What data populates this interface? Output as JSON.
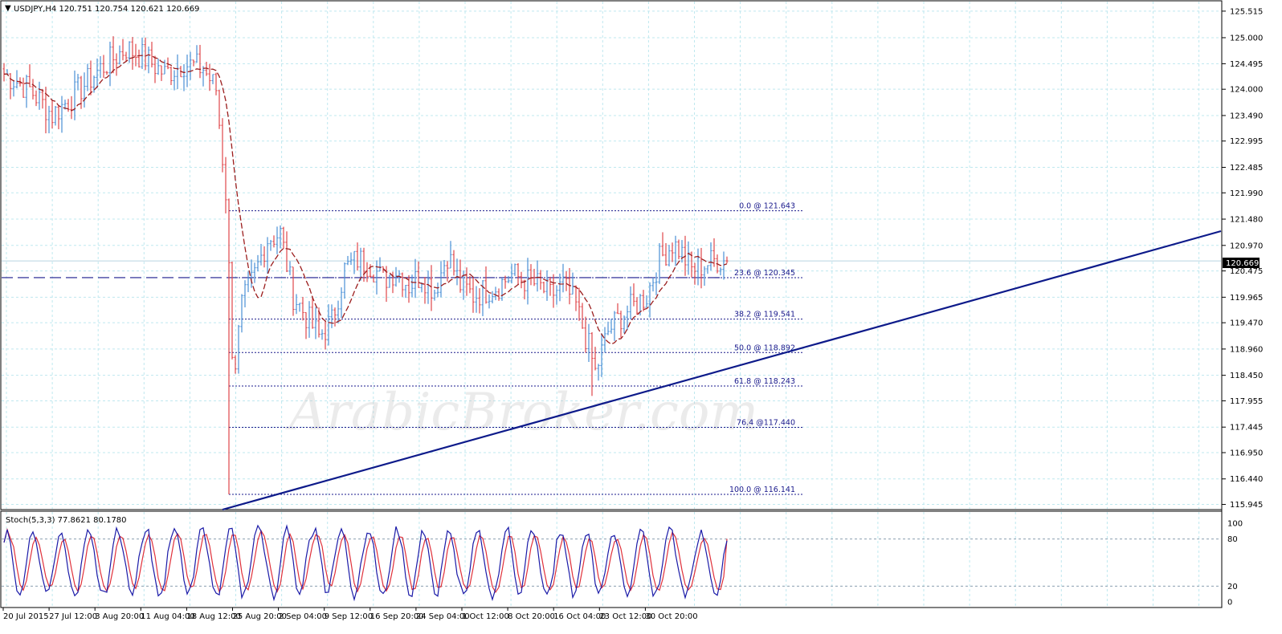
{
  "header": {
    "symbol_line": "USDJPY,H4  120.751 120.754 120.621 120.669",
    "dropdown_marker": "▼"
  },
  "watermark": "ArabicBroker.com",
  "colors": {
    "background": "#ffffff",
    "grid": "#bfe8ef",
    "bull": "#4a90d6",
    "bear": "#e0454a",
    "ma": "#9b1d1d",
    "fib": "#1a1a8c",
    "trendline": "#0d1a8a",
    "stoch_main": "#1a1aa8",
    "stoch_signal": "#e0303a",
    "stoch_level": "#8a9fb0",
    "frame": "#000000"
  },
  "chart_data": [
    {
      "type": "candlestick",
      "title": "USDJPY,H4",
      "ohlc_current": {
        "open": 120.751,
        "high": 120.754,
        "low": 120.621,
        "close": 120.669
      },
      "current_price_label": "120.669",
      "y_ticks": [
        "125.515",
        "125.000",
        "124.495",
        "124.000",
        "123.490",
        "122.995",
        "122.485",
        "121.990",
        "121.480",
        "120.970",
        "120.475",
        "119.965",
        "119.470",
        "118.960",
        "118.450",
        "117.955",
        "117.445",
        "116.950",
        "116.440",
        "115.945"
      ],
      "ylim": [
        115.86,
        125.7
      ],
      "x_ticks": [
        "20 Jul 2015",
        "27 Jul 12:00",
        "3 Aug 20:00",
        "11 Aug 04:00",
        "18 Aug 12:00",
        "25 Aug 20:00",
        "2 Sep 04:00",
        "9 Sep 12:00",
        "16 Sep 20:00",
        "24 Sep 04:00",
        "1 Oct 12:00",
        "8 Oct 20:00",
        "16 Oct 04:00",
        "23 Oct 12:00",
        "30 Oct 20:00"
      ],
      "close_path_keypoints": [
        [
          0,
          124.3
        ],
        [
          8,
          124.0
        ],
        [
          15,
          123.5
        ],
        [
          22,
          123.9
        ],
        [
          30,
          124.4
        ],
        [
          38,
          124.8
        ],
        [
          44,
          124.6
        ],
        [
          50,
          124.3
        ],
        [
          56,
          124.5
        ],
        [
          62,
          124.4
        ],
        [
          66,
          124.0
        ],
        [
          69,
          122.0
        ],
        [
          71,
          119.0
        ],
        [
          72,
          118.7
        ],
        [
          74,
          119.8
        ],
        [
          78,
          120.4
        ],
        [
          82,
          121.1
        ],
        [
          86,
          121.2
        ],
        [
          90,
          120.0
        ],
        [
          94,
          119.6
        ],
        [
          98,
          119.2
        ],
        [
          102,
          119.5
        ],
        [
          106,
          120.5
        ],
        [
          110,
          120.7
        ],
        [
          114,
          120.6
        ],
        [
          118,
          120.3
        ],
        [
          122,
          120.5
        ],
        [
          126,
          120.2
        ],
        [
          130,
          120.4
        ],
        [
          134,
          120.1
        ],
        [
          138,
          120.8
        ],
        [
          142,
          120.2
        ],
        [
          146,
          120.0
        ],
        [
          150,
          120.1
        ],
        [
          154,
          120.2
        ],
        [
          158,
          120.4
        ],
        [
          162,
          120.3
        ],
        [
          166,
          120.2
        ],
        [
          170,
          120.0
        ],
        [
          174,
          120.2
        ],
        [
          178,
          119.8
        ],
        [
          182,
          119.0
        ],
        [
          184,
          118.5
        ],
        [
          188,
          119.3
        ],
        [
          192,
          119.6
        ],
        [
          196,
          119.8
        ],
        [
          200,
          120.0
        ],
        [
          204,
          120.7
        ],
        [
          208,
          121.0
        ],
        [
          210,
          120.9
        ],
        [
          214,
          120.5
        ],
        [
          218,
          120.6
        ],
        [
          222,
          120.7
        ],
        [
          225,
          120.669
        ]
      ],
      "moving_average": {
        "label": "Moving Average",
        "color": "#9b1d1d"
      },
      "fibonacci": [
        {
          "label": "0.0 @ 121.643",
          "price": 121.643
        },
        {
          "label": "23.6 @ 120.345",
          "price": 120.345
        },
        {
          "label": "38.2 @ 119.541",
          "price": 119.541
        },
        {
          "label": "50.0 @ 118.892",
          "price": 118.892
        },
        {
          "label": "61.8 @ 118.243",
          "price": 118.243
        },
        {
          "label": "76.4 @117.440",
          "price": 117.44
        },
        {
          "label": "100.0 @ 116.141",
          "price": 116.141
        }
      ],
      "horizontal_dashed_line": {
        "price": 120.345
      },
      "trendline": {
        "from": {
          "bar": 69,
          "price": 115.9
        },
        "to": {
          "bar": 380,
          "price": 121.2
        }
      }
    },
    {
      "type": "line",
      "title": "Stoch(5,3,3) 77.8621 80.1780",
      "main_value": 77.8621,
      "signal_value": 80.178,
      "ylim": [
        0,
        100
      ],
      "levels": [
        20,
        80
      ],
      "y_ticks": [
        "100",
        "80",
        "20",
        "0"
      ],
      "series": [
        {
          "name": "Main",
          "color": "#1a1aa8"
        },
        {
          "name": "Signal",
          "color": "#e0303a"
        }
      ]
    }
  ]
}
